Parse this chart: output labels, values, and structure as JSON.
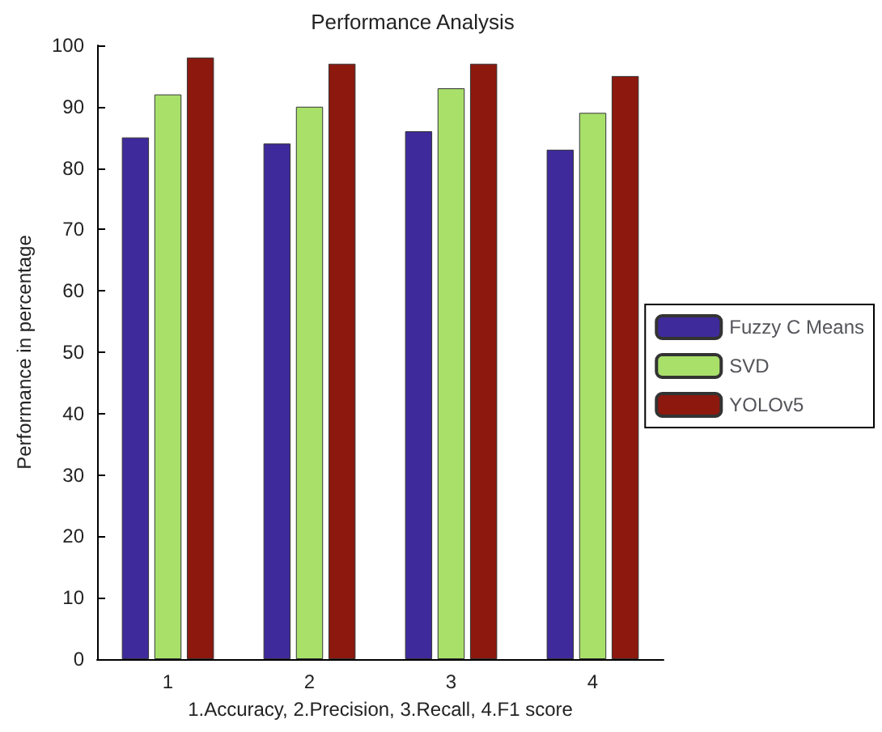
{
  "chart_data": {
    "type": "bar",
    "title": "Performance Analysis",
    "xlabel": "1.Accuracy, 2.Precision, 3.Recall, 4.F1 score",
    "ylabel": "Performance in percentage",
    "categories": [
      "1",
      "2",
      "3",
      "4"
    ],
    "series": [
      {
        "name": "Fuzzy C Means",
        "color": "#3f2a9c",
        "values": [
          85,
          84,
          86,
          83
        ]
      },
      {
        "name": "SVD",
        "color": "#a8e06a",
        "values": [
          92,
          90,
          93,
          89
        ]
      },
      {
        "name": "YOLOv5",
        "color": "#8c180e",
        "values": [
          98,
          97,
          97,
          95
        ]
      }
    ],
    "ylim": [
      0,
      100
    ],
    "yticks": [
      0,
      10,
      20,
      30,
      40,
      50,
      60,
      70,
      80,
      90,
      100
    ],
    "grid": false,
    "legend": "right"
  }
}
